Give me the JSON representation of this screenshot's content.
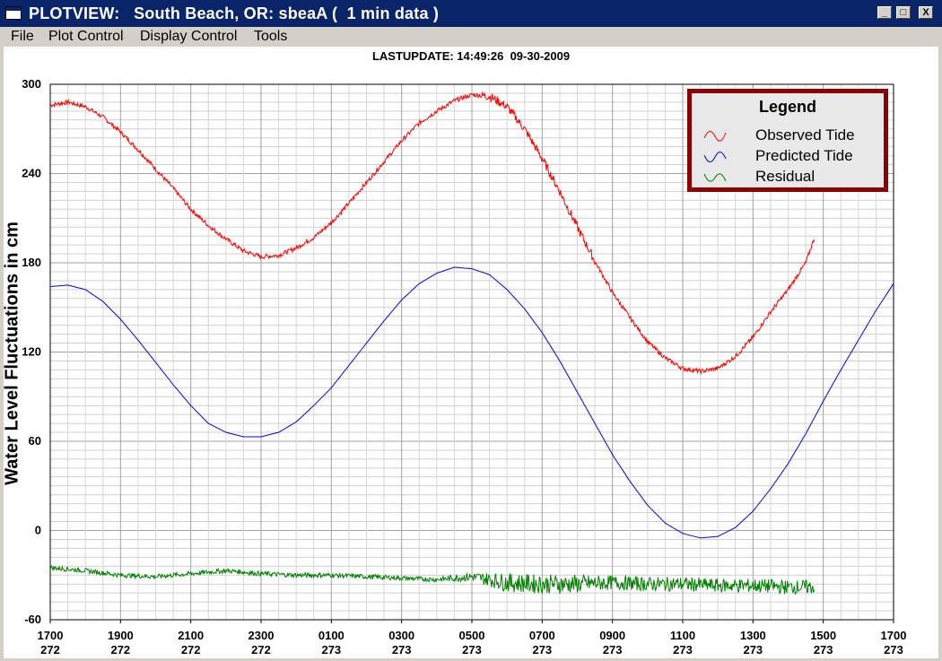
{
  "window": {
    "title": "PLOTVIEW:   South Beach, OR: sbeaA (  1 min data )",
    "minimize_glyph": "_",
    "maximize_glyph": "□",
    "close_glyph": "X"
  },
  "menu": [
    "File",
    "Plot Control",
    "Display Control",
    "Tools"
  ],
  "status": {
    "lastupdate": "LASTUPDATE: 14:49:26  09-30-2009"
  },
  "legend": {
    "title": "Legend",
    "entries": [
      {
        "label": "Observed Tide",
        "color": "#ff0000"
      },
      {
        "label": "Predicted Tide",
        "color": "#0000ff"
      },
      {
        "label": "Residual",
        "color": "#008000"
      }
    ]
  },
  "chart_data": {
    "type": "line",
    "title": "",
    "xlabel": "",
    "ylabel": "Water Level Fluctuations in cm",
    "ylim": [
      -60,
      300
    ],
    "yticks": [
      -60,
      0,
      60,
      120,
      180,
      240,
      300
    ],
    "xlim": [
      0,
      48
    ],
    "xticks": [
      {
        "x": 0,
        "time": "1700",
        "day": "272"
      },
      {
        "x": 4,
        "time": "1900",
        "day": "272"
      },
      {
        "x": 8,
        "time": "2100",
        "day": "272"
      },
      {
        "x": 12,
        "time": "2300",
        "day": "272"
      },
      {
        "x": 16,
        "time": "0100",
        "day": "273"
      },
      {
        "x": 20,
        "time": "0300",
        "day": "273"
      },
      {
        "x": 24,
        "time": "0500",
        "day": "273"
      },
      {
        "x": 28,
        "time": "0700",
        "day": "273"
      },
      {
        "x": 32,
        "time": "0900",
        "day": "273"
      },
      {
        "x": 36,
        "time": "1100",
        "day": "273"
      },
      {
        "x": 40,
        "time": "1300",
        "day": "273"
      },
      {
        "x": 44,
        "time": "1500",
        "day": "273"
      },
      {
        "x": 48,
        "time": "1700",
        "day": "273"
      }
    ],
    "x_unit_note": "",
    "grid": true,
    "legend_position": "top-right",
    "series": [
      {
        "name": "Observed Tide",
        "color": "#ff0000",
        "x": [
          0,
          1,
          2,
          3,
          4,
          5,
          6,
          7,
          8,
          9,
          10,
          11,
          12,
          13,
          14,
          15,
          16,
          17,
          18,
          19,
          20,
          21,
          22,
          23,
          24,
          25,
          26,
          27,
          28,
          29,
          30,
          31,
          32,
          33,
          34,
          35,
          36,
          37,
          38,
          39,
          40,
          41,
          42,
          43,
          43.5
        ],
        "y": [
          286,
          288,
          285,
          278,
          268,
          256,
          243,
          230,
          216,
          205,
          196,
          188,
          184,
          185,
          190,
          197,
          207,
          220,
          234,
          248,
          262,
          274,
          282,
          289,
          293,
          292,
          285,
          270,
          250,
          228,
          204,
          181,
          160,
          143,
          127,
          116,
          109,
          107,
          109,
          117,
          130,
          147,
          162,
          180,
          197
        ]
      },
      {
        "name": "Predicted Tide",
        "color": "#0000ff",
        "x": [
          0,
          1,
          2,
          3,
          4,
          5,
          6,
          7,
          8,
          9,
          10,
          11,
          12,
          13,
          14,
          15,
          16,
          17,
          18,
          19,
          20,
          21,
          22,
          23,
          24,
          25,
          26,
          27,
          28,
          29,
          30,
          31,
          32,
          33,
          34,
          35,
          36,
          37,
          38,
          39,
          40,
          41,
          42,
          43,
          44,
          45,
          46,
          47,
          48
        ],
        "y": [
          164,
          165,
          162,
          154,
          142,
          128,
          113,
          98,
          84,
          72,
          66,
          63,
          63,
          66,
          73,
          84,
          96,
          111,
          126,
          141,
          155,
          166,
          173,
          177,
          176,
          172,
          162,
          149,
          133,
          114,
          93,
          72,
          51,
          33,
          17,
          5,
          -2,
          -5,
          -4,
          2,
          13,
          28,
          45,
          65,
          87,
          108,
          128,
          148,
          166
        ]
      },
      {
        "name": "Residual",
        "color": "#008000",
        "x": [
          0,
          2,
          4,
          6,
          8,
          10,
          12,
          14,
          16,
          18,
          20,
          22,
          24,
          26,
          28,
          30,
          32,
          34,
          36,
          38,
          40,
          42,
          43.5
        ],
        "y": [
          -25,
          -27,
          -30,
          -31,
          -29,
          -27,
          -29,
          -30,
          -30,
          -31,
          -32,
          -33,
          -31,
          -35,
          -36,
          -36,
          -35,
          -36,
          -36,
          -37,
          -37,
          -38,
          -38
        ],
        "noise": [
          1,
          1,
          1,
          1,
          1,
          1,
          1,
          1,
          1,
          1,
          1,
          1,
          2,
          4,
          4,
          4,
          3,
          3,
          3,
          3,
          3,
          3,
          3
        ]
      }
    ]
  }
}
